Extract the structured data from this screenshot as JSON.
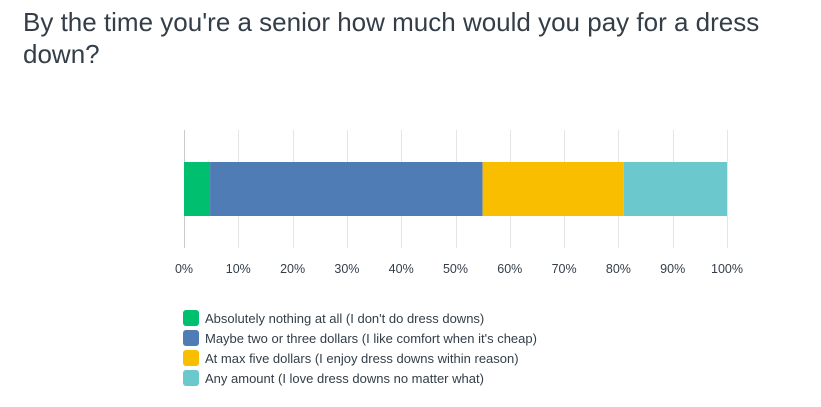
{
  "chart_data": {
    "type": "bar",
    "orientation": "horizontal",
    "stacked": true,
    "title": "By the time you're a senior how much would you pay for a dress down?",
    "xlim": [
      0,
      100
    ],
    "x_ticks": [
      "0%",
      "10%",
      "20%",
      "30%",
      "40%",
      "50%",
      "60%",
      "70%",
      "80%",
      "90%",
      "100%"
    ],
    "grid": true,
    "legend_position": "bottom-left",
    "series": [
      {
        "name": "Absolutely nothing at all (I don't do dress downs)",
        "value": 4.8,
        "color": "#00bf6f"
      },
      {
        "name": "Maybe two or three dollars (I like comfort when it's cheap)",
        "value": 50.2,
        "color": "#507cb6"
      },
      {
        "name": "At max five dollars (I enjoy dress downs within reason)",
        "value": 26.0,
        "color": "#f9be00"
      },
      {
        "name": "Any amount (I love dress downs no matter what)",
        "value": 19.0,
        "color": "#6bc8cd"
      }
    ]
  }
}
